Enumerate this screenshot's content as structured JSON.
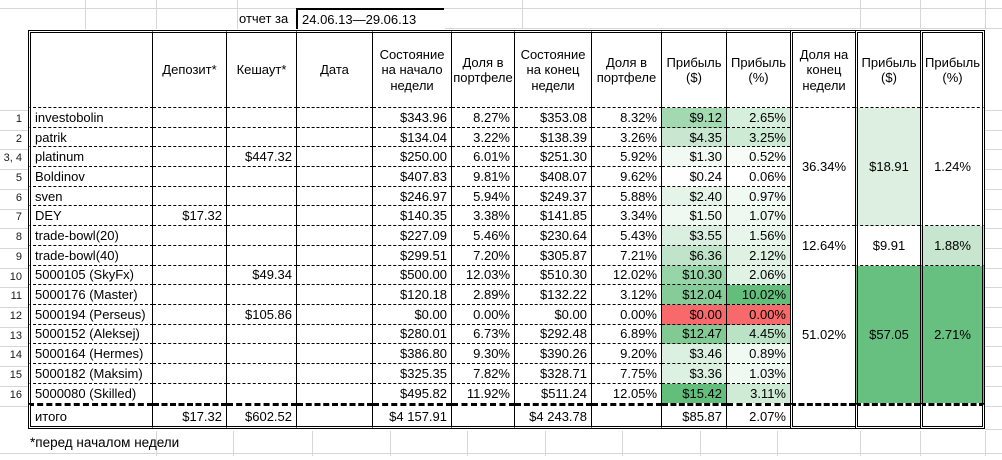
{
  "report": {
    "label": "отчет за",
    "period": "24.06.13—29.06.13"
  },
  "footnote": "*перед началом недели",
  "headers": {
    "name": "",
    "deposit": "Депозит*",
    "cashout": "Кешаут*",
    "date": "Дата",
    "start": "Состояние на начало недели",
    "share_start": "Доля в портфеле",
    "end": "Состояние на конец недели",
    "share_end": "Доля в портфеле",
    "profit_usd": "Прибыль ($)",
    "profit_pct": "Прибыль (%)",
    "group_share": "Доля на конец недели",
    "group_profit_usd": "Прибыль ($)",
    "group_profit_pct": "Прибыль (%)"
  },
  "rows": [
    {
      "num": "1",
      "name": "investobolin",
      "deposit": "",
      "cashout": "",
      "date": "",
      "start": "$343.96",
      "share_start": "8.27%",
      "end": "$353.08",
      "share_end": "8.32%",
      "profit_usd": "$9.12",
      "profit_pct": "2.65%",
      "usd_bg": "#a3d9b1",
      "pct_bg": "#d6eedc"
    },
    {
      "num": "2",
      "name": "patrik",
      "deposit": "",
      "cashout": "",
      "date": "",
      "start": "$134.04",
      "share_start": "3.22%",
      "end": "$138.39",
      "share_end": "3.26%",
      "profit_usd": "$4.35",
      "profit_pct": "3.25%",
      "usd_bg": "#c9e7d0",
      "pct_bg": "#ccead4"
    },
    {
      "num": "3, 4",
      "name": "platinum",
      "deposit": "",
      "cashout": "$447.32",
      "date": "",
      "start": "$250.00",
      "share_start": "6.01%",
      "end": "$251.30",
      "share_end": "5.92%",
      "profit_usd": "$1.30",
      "profit_pct": "0.52%",
      "usd_bg": "#f0f9f2",
      "pct_bg": "#f7fcf8"
    },
    {
      "num": "5",
      "name": "Boldinov",
      "deposit": "",
      "cashout": "",
      "date": "",
      "start": "$407.83",
      "share_start": "9.81%",
      "end": "$408.07",
      "share_end": "9.62%",
      "profit_usd": "$0.24",
      "profit_pct": "0.06%",
      "usd_bg": "#fdfefd",
      "pct_bg": "#fefffe"
    },
    {
      "num": "6",
      "name": "sven",
      "deposit": "",
      "cashout": "",
      "date": "",
      "start": "$246.97",
      "share_start": "5.94%",
      "end": "$249.37",
      "share_end": "5.88%",
      "profit_usd": "$2.40",
      "profit_pct": "0.97%",
      "usd_bg": "#e5f4e9",
      "pct_bg": "#f0f9f2"
    },
    {
      "num": "7",
      "name": "DEY",
      "deposit": "$17.32",
      "cashout": "",
      "date": "",
      "start": "$140.35",
      "share_start": "3.38%",
      "end": "$141.85",
      "share_end": "3.34%",
      "profit_usd": "$1.50",
      "profit_pct": "1.07%",
      "usd_bg": "#eff8f1",
      "pct_bg": "#eef8f1"
    },
    {
      "num": "8",
      "name": "trade-bowl(20)",
      "deposit": "",
      "cashout": "",
      "date": "",
      "start": "$227.09",
      "share_start": "5.46%",
      "end": "$230.64",
      "share_end": "5.43%",
      "profit_usd": "$3.55",
      "profit_pct": "1.56%",
      "usd_bg": "#daefe0",
      "pct_bg": "#e7f5ea"
    },
    {
      "num": "9",
      "name": "trade-bowl(40)",
      "deposit": "",
      "cashout": "",
      "date": "",
      "start": "$299.51",
      "share_start": "7.20%",
      "end": "$305.87",
      "share_end": "7.21%",
      "profit_usd": "$6.36",
      "profit_pct": "2.12%",
      "usd_bg": "#bfe4c9",
      "pct_bg": "#def1e3"
    },
    {
      "num": "10",
      "name": "5000105 (SkyFx)",
      "deposit": "",
      "cashout": "$49.34",
      "date": "",
      "start": "$500.00",
      "share_start": "12.03%",
      "end": "$510.30",
      "share_end": "12.02%",
      "profit_usd": "$10.30",
      "profit_pct": "2.06%",
      "usd_bg": "#97d4a7",
      "pct_bg": "#dff2e4"
    },
    {
      "num": "11",
      "name": "5000176 (Master)",
      "deposit": "",
      "cashout": "",
      "date": "",
      "start": "$120.18",
      "share_start": "2.89%",
      "end": "$132.22",
      "share_end": "3.12%",
      "profit_usd": "$12.04",
      "profit_pct": "10.02%",
      "usd_bg": "#85cc98",
      "pct_bg": "#63be7b"
    },
    {
      "num": "12",
      "name": "5000194 (Perseus)",
      "deposit": "",
      "cashout": "$105.86",
      "date": "",
      "start": "$0.00",
      "share_start": "0.00%",
      "end": "$0.00",
      "share_end": "0.00%",
      "profit_usd": "$0.00",
      "profit_pct": "0.00%",
      "usd_bg": "#f8696b",
      "pct_bg": "#f8696b"
    },
    {
      "num": "13",
      "name": "5000152 (Aleksej)",
      "deposit": "",
      "cashout": "",
      "date": "",
      "start": "$280.01",
      "share_start": "6.73%",
      "end": "$292.48",
      "share_end": "6.89%",
      "profit_usd": "$12.47",
      "profit_pct": "4.45%",
      "usd_bg": "#81ca94",
      "pct_bg": "#bae2c4"
    },
    {
      "num": "14",
      "name": "5000164 (Hermes)",
      "deposit": "",
      "cashout": "",
      "date": "",
      "start": "$386.80",
      "share_start": "9.30%",
      "end": "$390.26",
      "share_end": "9.20%",
      "profit_usd": "$3.46",
      "profit_pct": "0.89%",
      "usd_bg": "#dcf0e1",
      "pct_bg": "#f1f9f3"
    },
    {
      "num": "15",
      "name": "5000182 (Maksim)",
      "deposit": "",
      "cashout": "",
      "date": "",
      "start": "$325.35",
      "share_start": "7.82%",
      "end": "$328.71",
      "share_end": "7.75%",
      "profit_usd": "$3.36",
      "profit_pct": "1.03%",
      "usd_bg": "#ddf1e2",
      "pct_bg": "#eff8f1"
    },
    {
      "num": "16",
      "name": "5000080 (Skilled)",
      "deposit": "",
      "cashout": "",
      "date": "",
      "start": "$495.82",
      "share_start": "11.92%",
      "end": "$511.24",
      "share_end": "12.05%",
      "profit_usd": "$15.42",
      "profit_pct": "3.11%",
      "usd_bg": "#63be7b",
      "pct_bg": "#cfebd6"
    }
  ],
  "groups": [
    {
      "share": "36.34%",
      "profit_usd": "$18.91",
      "profit_pct": "1.24%",
      "share_bg": "#ffffff",
      "usd_bg": "#dcefe1",
      "pct_bg": "#ffffff"
    },
    {
      "share": "12.64%",
      "profit_usd": "$9.91",
      "profit_pct": "1.88%",
      "share_bg": "#ffffff",
      "usd_bg": "#ffffff",
      "pct_bg": "#c8e6cf"
    },
    {
      "share": "51.02%",
      "profit_usd": "$57.05",
      "profit_pct": "2.71%",
      "share_bg": "#ffffff",
      "usd_bg": "#68c080",
      "pct_bg": "#68c080"
    }
  ],
  "total": {
    "label": "итого",
    "deposit": "$17.32",
    "cashout": "$602.52",
    "date": "",
    "start": "$4 157.91",
    "share_start": "",
    "end": "$4 243.78",
    "share_end": "",
    "profit_usd": "$85.87",
    "profit_pct": "2.07%"
  },
  "colors": {
    "scale_green_max": "#63be7b",
    "scale_red": "#f8696b"
  }
}
